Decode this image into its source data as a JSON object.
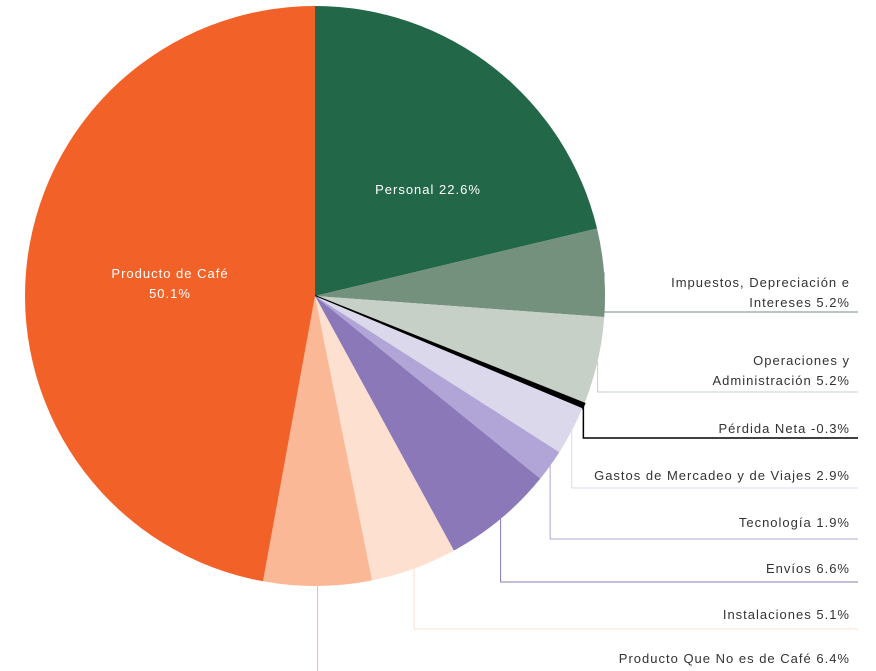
{
  "chart_data": {
    "type": "pie",
    "categories": [
      "Personal",
      "Impuestos, Depreciación e Intereses",
      "Operaciones y Administración",
      "Pérdida Neta",
      "Gastos de Mercadeo y de Viajes",
      "Tecnología",
      "Envíos",
      "Instalaciones",
      "Producto Que No es de Café",
      "Producto de Café"
    ],
    "values": [
      22.6,
      5.2,
      5.2,
      -0.3,
      2.9,
      1.9,
      6.6,
      5.1,
      6.4,
      50.1
    ],
    "value_labels": [
      "22.6%",
      "5.2%",
      "5.2%",
      "-0.3%",
      "2.9%",
      "1.9%",
      "6.6%",
      "5.1%",
      "6.4%",
      "50.1%"
    ],
    "colors": [
      "#236749",
      "#73917d",
      "#c6d0c6",
      "#000000",
      "#dcd8ec",
      "#b0a5d6",
      "#8b78b9",
      "#fde0d0",
      "#fbb896",
      "#f26228"
    ]
  }
}
